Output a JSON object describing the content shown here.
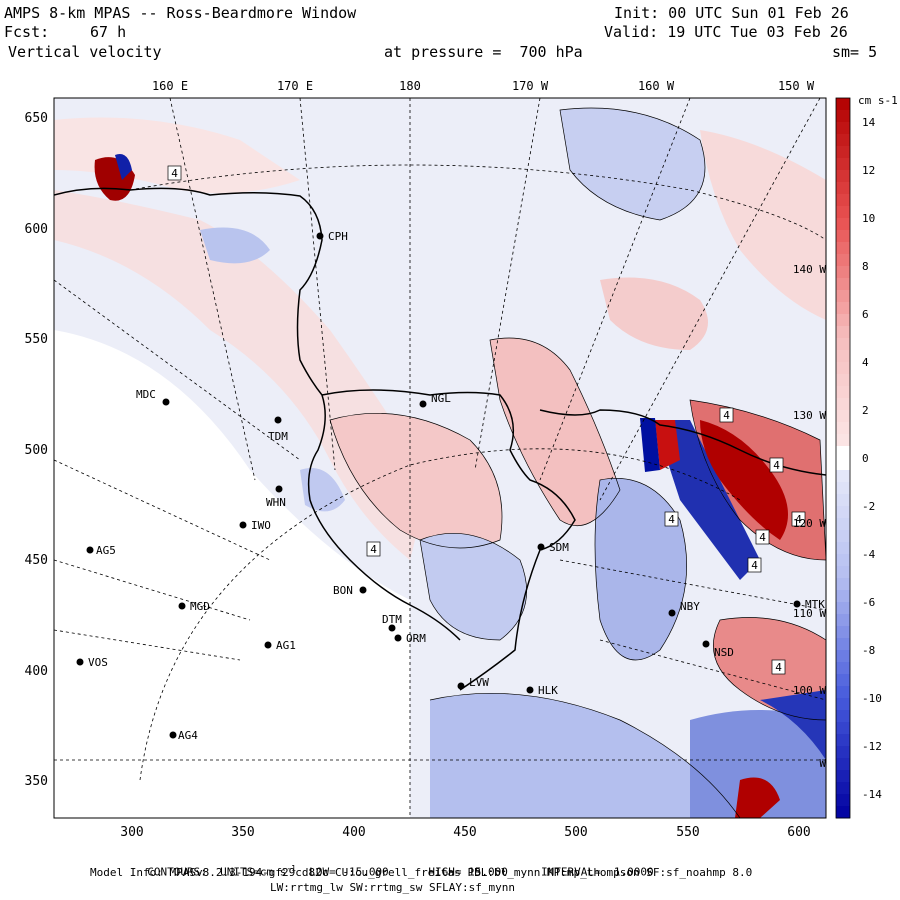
{
  "header": {
    "title": "AMPS 8-km MPAS -- Ross-Beardmore Window",
    "init": "Init: 00 UTC Sun 01 Feb 26",
    "fcst_label": "Fcst:",
    "fcst_value": "67 h",
    "valid": "Valid: 19 UTC Tue 03 Feb 26",
    "field": "Vertical velocity",
    "pressure": "at pressure =  700 hPa",
    "smooth": "sm= 5"
  },
  "lon_labels": [
    "160 E",
    "170 E",
    "180",
    "170 W",
    "160 W",
    "150 W"
  ],
  "y_ticks": [
    "650",
    "600",
    "550",
    "500",
    "450",
    "400",
    "350"
  ],
  "x_ticks": [
    "300",
    "350",
    "400",
    "450",
    "500",
    "550",
    "600"
  ],
  "colorbar": {
    "units": "cm s-1",
    "ticks": [
      "14",
      "12",
      "10",
      "8",
      "6",
      "4",
      "2",
      "0",
      "-2",
      "-4",
      "-6",
      "-8",
      "-10",
      "-12",
      "-14"
    ]
  },
  "side_lon_labels": [
    "140 W",
    "130 W",
    "120 W",
    "110 W",
    "100 W",
    "W"
  ],
  "stations": [
    "CPH",
    "NGL",
    "MDC",
    "TDM",
    "WHN",
    "IWO",
    "AG5",
    "SDM",
    "BON",
    "DTM",
    "ORM",
    "MGD",
    "AG1",
    "NBY",
    "VOS",
    "LVW",
    "HLK",
    "NSD",
    "AG4",
    "MTK"
  ],
  "contour_labels": [
    "4",
    "4",
    "4",
    "4",
    "4",
    "4",
    "4",
    "4",
    "4"
  ],
  "footer": {
    "contours": "CONTOURS:  UNITS=cm s",
    "contours_rest": "  LOW= -15.000      HIGH= 15.000     INTERVAL=  1.0000",
    "model_info": "Model Info: MPASv8.2.3-194-gf29cd82c CU:cu_grell_freitas PBL:bl_mynn MP:mp_thompson SF:sf_noahmp 8.0",
    "model_info2": "LW:rrtmg_lw SW:rrtmg_sw SFLAY:sf_mynn"
  },
  "colors": {
    "red_strong": "#b20000",
    "red_light": "#f6c4c4",
    "blue_strong": "#0000b4",
    "blue_light": "#c6cdf2",
    "background_field": "#ecedf9"
  }
}
